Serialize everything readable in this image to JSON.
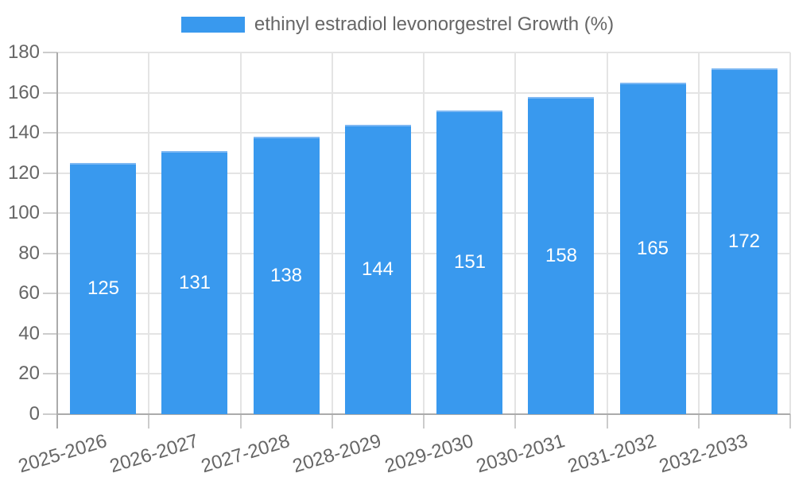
{
  "legend": {
    "label": "ethinyl estradiol levonorgestrel Growth (%)"
  },
  "chart_data": {
    "type": "bar",
    "title": "",
    "series_name": "ethinyl estradiol levonorgestrel Growth (%)",
    "categories": [
      "2025-2026",
      "2026-2027",
      "2027-2028",
      "2028-2029",
      "2029-2030",
      "2030-2031",
      "2031-2032",
      "2032-2033"
    ],
    "values": [
      125,
      131,
      138,
      144,
      151,
      158,
      165,
      172
    ],
    "value_labels": [
      "125",
      "131",
      "138",
      "144",
      "151",
      "158",
      "165",
      "172"
    ],
    "xlabel": "",
    "ylabel": "",
    "ylim": [
      0,
      180
    ],
    "yticks": [
      0,
      20,
      40,
      60,
      80,
      100,
      120,
      140,
      160,
      180
    ],
    "grid": "on",
    "legend_position": "top",
    "value_label_position": "inside-center",
    "colors": {
      "bar_fill": "#3999EE",
      "bar_edge": "#7EB8F3",
      "gridline": "#E4E4E4",
      "axis_line": "#ABABAB",
      "tick_mark": "#CCCCCC",
      "tick_text": "#666666",
      "value_text": "#FFFFFF",
      "background": "#FFFFFF"
    }
  }
}
